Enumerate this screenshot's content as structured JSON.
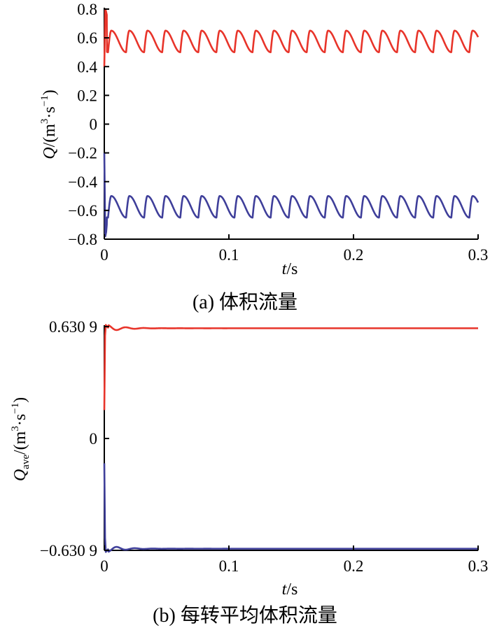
{
  "colors": {
    "red_series": "#e8342a",
    "blue_series": "#3f3f9a",
    "axis": "#000000"
  },
  "chart_data": [
    {
      "type": "line",
      "caption": "(a)  体积流量",
      "ylabel_main": "Q",
      "ylabel_unit": "/(m",
      "ylabel_unit_sup1": "3",
      "ylabel_unit_mid": "·s",
      "ylabel_unit_sup2": "−1",
      "ylabel_close": ")",
      "xlabel_main": "t",
      "xlabel_unit": "/s",
      "xlim": [
        0,
        0.3
      ],
      "ylim": [
        -0.8,
        0.8
      ],
      "xticks": [
        0,
        0.1,
        0.2,
        0.3
      ],
      "xtick_labels": [
        "0",
        "0.1",
        "0.2",
        "0.3"
      ],
      "yticks": [
        -0.8,
        -0.6,
        -0.4,
        -0.2,
        0,
        0.2,
        0.4,
        0.6,
        0.8
      ],
      "ytick_labels": [
        "−0.8",
        "−0.6",
        "−0.4",
        "−0.2",
        "0",
        "0.2",
        "0.4",
        "0.6",
        "0.8"
      ],
      "series": [
        {
          "color": "#e8342a",
          "startup": [
            [
              0,
              0.4
            ],
            [
              0.0008,
              0.8
            ],
            [
              0.0015,
              0.78
            ],
            [
              0.002,
              0.76
            ]
          ],
          "period": 0.0145,
          "min": 0.5,
          "max": 0.65,
          "phase": 0.003
        },
        {
          "color": "#3f3f9a",
          "startup": [
            [
              0,
              -0.2
            ],
            [
              0.0008,
              -0.78
            ],
            [
              0.0015,
              -0.75
            ],
            [
              0.002,
              -0.7
            ]
          ],
          "period": 0.0145,
          "min": -0.65,
          "max": -0.5,
          "phase": 0.003
        }
      ]
    },
    {
      "type": "line",
      "caption": "(b)  每转平均体积流量",
      "ylabel_main": "Q",
      "ylabel_sub": "ave",
      "ylabel_unit": "/(m",
      "ylabel_unit_sup1": "3",
      "ylabel_unit_mid": "·s",
      "ylabel_unit_sup2": "−1",
      "ylabel_close": ")",
      "xlabel_main": "t",
      "xlabel_unit": "/s",
      "xlim": [
        0,
        0.3
      ],
      "ylim": [
        -0.6309,
        0.6309
      ],
      "xticks": [
        0,
        0.1,
        0.2,
        0.3
      ],
      "xtick_labels": [
        "0",
        "0.1",
        "0.2",
        "0.3"
      ],
      "yticks": [
        -0.6309,
        0,
        0.6309
      ],
      "ytick_labels": [
        "−0.630 9",
        "0",
        "0.630 9"
      ],
      "series": [
        {
          "color": "#e8342a",
          "startup": [
            [
              0,
              0.16
            ],
            [
              0.0006,
              0.58
            ],
            [
              0.0012,
              0.64
            ],
            [
              0.003,
              0.625
            ]
          ],
          "steady": 0.6215
        },
        {
          "color": "#3f3f9a",
          "startup": [
            [
              0,
              -0.14
            ],
            [
              0.0006,
              -0.56
            ],
            [
              0.0012,
              -0.64
            ],
            [
              0.003,
              -0.625
            ]
          ],
          "steady": -0.6215
        }
      ]
    }
  ]
}
